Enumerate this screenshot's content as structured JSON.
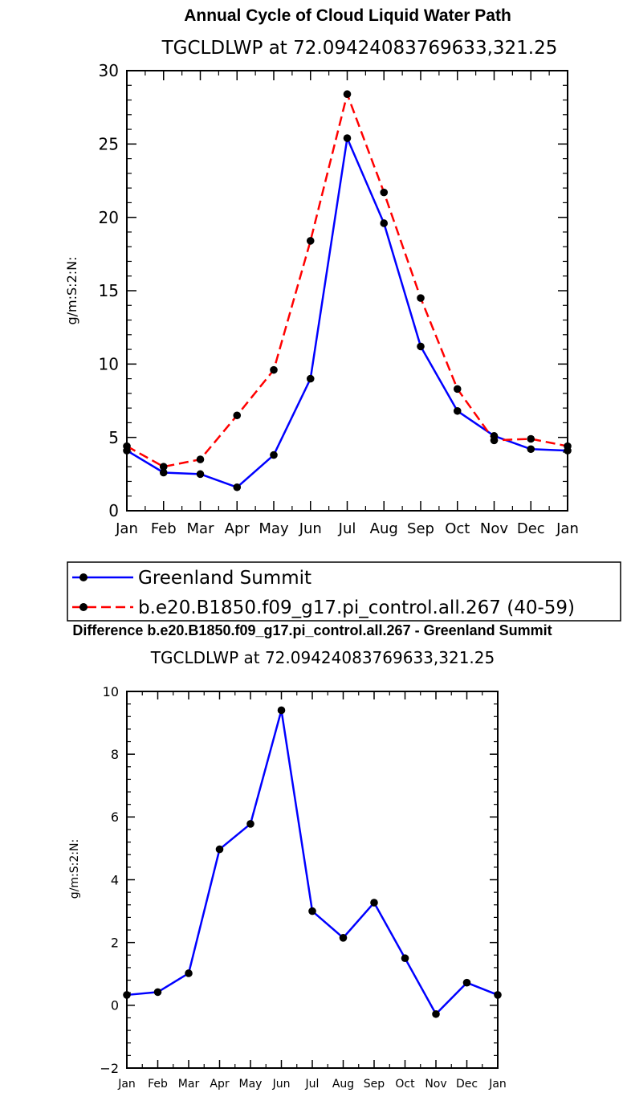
{
  "chart_data": [
    {
      "type": "line",
      "title": "Annual Cycle of Cloud Liquid Water Path",
      "subtitle": "TGCLDLWP  at  72.09424083769633,321.25",
      "ylabel": "g/m:S:2:N:",
      "xlabel": "",
      "categories": [
        "Jan",
        "Feb",
        "Mar",
        "Apr",
        "May",
        "Jun",
        "Jul",
        "Aug",
        "Sep",
        "Oct",
        "Nov",
        "Dec",
        "Jan"
      ],
      "ylim": [
        0,
        30
      ],
      "yticks": [
        "0",
        "5",
        "10",
        "15",
        "20",
        "25",
        "30"
      ],
      "legend_placement": "bottom",
      "series": [
        {
          "name": "Greenland Summit",
          "color": "#0000ff",
          "dash": "solid",
          "values": [
            4.1,
            2.6,
            2.5,
            1.6,
            3.8,
            9.0,
            25.4,
            19.6,
            11.2,
            6.8,
            5.1,
            4.2,
            4.1
          ]
        },
        {
          "name": "b.e20.B1850.f09_g17.pi_control.all.267 (40-59)",
          "color": "#ff0000",
          "dash": "dashed",
          "values": [
            4.4,
            3.0,
            3.5,
            6.5,
            9.6,
            18.4,
            28.4,
            21.7,
            14.5,
            8.3,
            4.8,
            4.9,
            4.4
          ]
        }
      ]
    },
    {
      "type": "line",
      "title": "Difference b.e20.B1850.f09_g17.pi_control.all.267 - Greenland Summit",
      "subtitle": "TGCLDLWP  at  72.09424083769633,321.25",
      "ylabel": "g/m:S:2:N:",
      "xlabel": "",
      "categories": [
        "Jan",
        "Feb",
        "Mar",
        "Apr",
        "May",
        "Jun",
        "Jul",
        "Aug",
        "Sep",
        "Oct",
        "Nov",
        "Dec",
        "Jan"
      ],
      "ylim": [
        -2,
        10
      ],
      "yticks": [
        "-2",
        "0",
        "2",
        "4",
        "6",
        "8",
        "10"
      ],
      "series": [
        {
          "color": "#0000ff",
          "dash": "solid",
          "values": [
            0.33,
            0.42,
            1.02,
            4.97,
            5.78,
            9.4,
            3.0,
            2.15,
            3.27,
            1.5,
            -0.28,
            0.72,
            0.33
          ]
        }
      ]
    }
  ]
}
